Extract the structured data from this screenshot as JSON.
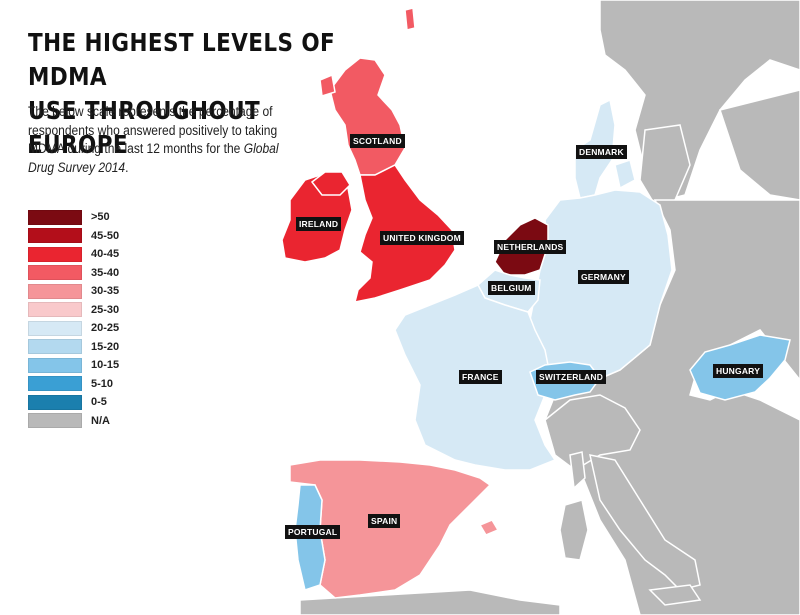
{
  "title_line1": "THE HIGHEST LEVELS OF MDMA",
  "title_line2": "USE THROUGHOUT EUROPE",
  "description": {
    "text_before": "The below scale represents the percentage of respondents who answered positively to taking MDMA during the last 12 months for the ",
    "survey_name": "Global Drug Survey 2014",
    "text_after": "."
  },
  "legend": [
    {
      "label": ">50",
      "color": "#7b0a12"
    },
    {
      "label": "45-50",
      "color": "#b30e1a"
    },
    {
      "label": "40-45",
      "color": "#ea2530"
    },
    {
      "label": "35-40",
      "color": "#f25a63"
    },
    {
      "label": "30-35",
      "color": "#f59599"
    },
    {
      "label": "25-30",
      "color": "#f9c9cb"
    },
    {
      "label": "20-25",
      "color": "#d6e9f5"
    },
    {
      "label": "15-20",
      "color": "#b3d9ef"
    },
    {
      "label": "10-15",
      "color": "#84c5e9"
    },
    {
      "label": "5-10",
      "color": "#3a9fd4"
    },
    {
      "label": "0-5",
      "color": "#1b7fae"
    },
    {
      "label": "N/A",
      "color": "#b9b9b9"
    }
  ],
  "countries": {
    "scotland": {
      "label": "SCOTLAND",
      "range": "35-40"
    },
    "ireland": {
      "label": "IRELAND",
      "range": "40-45"
    },
    "united_kingdom": {
      "label": "UNITED KINGDOM",
      "range": "40-45"
    },
    "netherlands": {
      "label": "NETHERLANDS",
      "range": ">50"
    },
    "belgium": {
      "label": "BELGIUM",
      "range": "20-25"
    },
    "denmark": {
      "label": "DENMARK",
      "range": "20-25"
    },
    "germany": {
      "label": "GERMANY",
      "range": "20-25"
    },
    "france": {
      "label": "FRANCE",
      "range": "20-25"
    },
    "switzerland": {
      "label": "SWITZERLAND",
      "range": "10-15"
    },
    "hungary": {
      "label": "HUNGARY",
      "range": "10-15"
    },
    "spain": {
      "label": "SPAIN",
      "range": "30-35"
    },
    "portugal": {
      "label": "PORTUGAL",
      "range": "10-15"
    }
  },
  "colors": {
    "water": "#ffffff",
    "na_land": "#b9b9b9",
    "border": "#ffffff"
  }
}
